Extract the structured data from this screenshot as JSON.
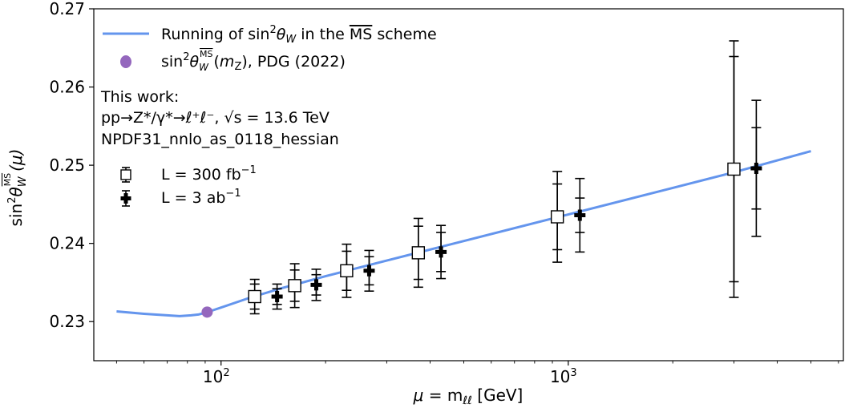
{
  "chart_data": {
    "type": "line",
    "title": "",
    "xlabel": "μ = m_ℓℓ [GeV]",
    "ylabel": "sin²θ_W^MS(μ)",
    "xscale": "log",
    "xlim": [
      43,
      6200
    ],
    "ylim": [
      0.225,
      0.27
    ],
    "yticks": [
      0.23,
      0.24,
      0.25,
      0.26,
      0.27
    ],
    "ytick_labels": [
      "0.23",
      "0.24",
      "0.25",
      "0.26",
      "0.27"
    ],
    "xtick_labels": [
      {
        "base": "10",
        "exp": "2",
        "value": 100
      },
      {
        "base": "10",
        "exp": "3",
        "value": 1000
      }
    ],
    "colors": {
      "line": "#6495ed",
      "pdg": "#9467bd",
      "black": "#000000"
    },
    "running_curve": {
      "name": "Running of sin²θ_W in the MS scheme",
      "x": [
        50,
        60,
        70,
        76,
        82,
        86,
        91.2,
        100,
        120,
        150,
        200,
        300,
        500,
        1000,
        2000,
        3000,
        5000
      ],
      "y": [
        0.2313,
        0.231,
        0.2308,
        0.2307,
        0.2308,
        0.2309,
        0.2312,
        0.2318,
        0.233,
        0.2343,
        0.2358,
        0.2378,
        0.2403,
        0.2437,
        0.2471,
        0.2491,
        0.2518
      ]
    },
    "pdg_point": {
      "label": "sin²θ_W^MS(m_Z), PDG (2022)",
      "x": 91.2,
      "y": 0.23122
    },
    "series": [
      {
        "name": "L = 300 fb⁻¹",
        "marker": "open-square",
        "points": [
          {
            "x": 125,
            "y": 0.2332,
            "err_inner": 0.0016,
            "err_outer": 0.0022
          },
          {
            "x": 163,
            "y": 0.2346,
            "err_inner": 0.002,
            "err_outer": 0.0028
          },
          {
            "x": 230,
            "y": 0.2365,
            "err_inner": 0.0025,
            "err_outer": 0.0034
          },
          {
            "x": 370,
            "y": 0.2388,
            "err_inner": 0.0034,
            "err_outer": 0.0044
          },
          {
            "x": 930,
            "y": 0.2434,
            "err_inner": 0.0042,
            "err_outer": 0.0058
          },
          {
            "x": 3000,
            "y": 0.2495,
            "err_inner": 0.0144,
            "err_outer": 0.0164
          }
        ]
      },
      {
        "name": "L = 3 ab⁻¹",
        "marker": "filled-plus",
        "points": [
          {
            "x": 145,
            "y": 0.2332,
            "err_inner": 0.001,
            "err_outer": 0.0016
          },
          {
            "x": 188,
            "y": 0.2347,
            "err_inner": 0.0013,
            "err_outer": 0.002
          },
          {
            "x": 267,
            "y": 0.2365,
            "err_inner": 0.0018,
            "err_outer": 0.0026
          },
          {
            "x": 430,
            "y": 0.2389,
            "err_inner": 0.0025,
            "err_outer": 0.0034
          },
          {
            "x": 1080,
            "y": 0.2436,
            "err_inner": 0.0022,
            "err_outer": 0.0047
          },
          {
            "x": 3480,
            "y": 0.2496,
            "err_inner": 0.0052,
            "err_outer": 0.0087
          }
        ]
      }
    ],
    "legend": {
      "placement": "top-left",
      "line_label": {
        "prefix": "Running of sin",
        "sup": "2",
        "theta": "θ",
        "sub": "W",
        "middle": " in the ",
        "ms": "MS",
        "suffix": " scheme"
      },
      "pdg_label": {
        "prefix": "sin",
        "sup": "2",
        "theta": "θ",
        "sub": "W",
        "ms": "MS",
        "arg": "(",
        "mz": "m",
        "mzsub": "Z",
        "suffix": "), PDG (2022)"
      },
      "work_lines": [
        "This work:",
        "pp→Z*/γ*→ℓ⁺ℓ⁻, √s = 13.6 TeV",
        "NPDF31_nnlo_as_0118_hessian"
      ],
      "series_labels": [
        {
          "text": "L = 300 fb",
          "sup": "−1"
        },
        {
          "text": "L = 3 ab",
          "sup": "−1"
        }
      ]
    },
    "axis_text": {
      "xlabel_mu": "μ",
      "xlabel_eq": " = m",
      "xlabel_sub": "ℓℓ",
      "xlabel_unit": " [GeV]",
      "ylabel_sin": "sin",
      "ylabel_sup": "2",
      "ylabel_theta": "θ",
      "ylabel_sub": "W",
      "ylabel_ms": "MS",
      "ylabel_arg": "(μ)"
    }
  }
}
